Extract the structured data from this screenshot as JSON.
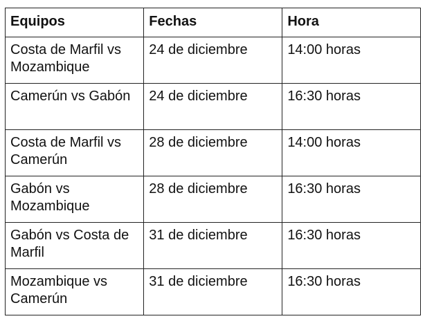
{
  "table": {
    "headers": [
      "Equipos",
      "Fechas",
      "Hora"
    ],
    "rows": [
      [
        "Costa de Marfil vs Mozambique",
        "24 de diciembre",
        "14:00 horas"
      ],
      [
        "Camerún vs Gabón",
        "24 de diciembre",
        "16:30 horas"
      ],
      [
        "Costa de Marfil vs Camerún",
        "28 de diciembre",
        "14:00 horas"
      ],
      [
        "Gabón vs Mozambique",
        "28 de diciembre",
        "16:30 horas"
      ],
      [
        "Gabón vs Costa de Marfil",
        "31 de diciembre",
        "16:30 horas"
      ],
      [
        "Mozambique vs Camerún",
        "31 de diciembre",
        "16:30 horas"
      ]
    ]
  }
}
